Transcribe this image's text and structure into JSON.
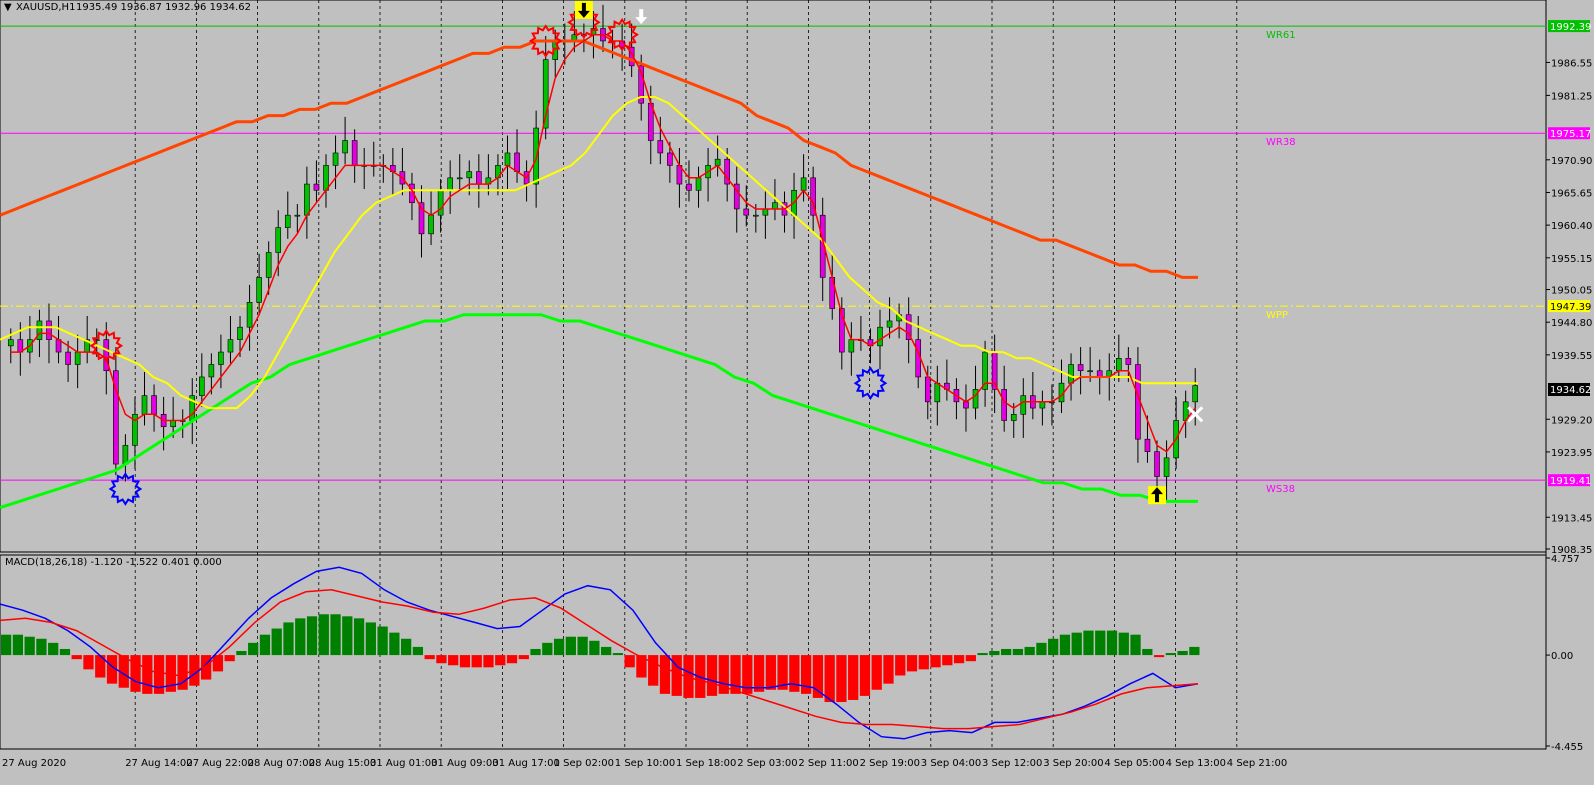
{
  "header": {
    "title": "XAUUSD,H1",
    "ohlc": "1935.49 1936.87 1932.96 1934.62"
  },
  "macd_header": "MACD(18,26,18) -1.120 -1.522 0.401 0.000",
  "colors": {
    "background": "#c0c0c0",
    "bull": "#00c000",
    "bear": "#e000e0",
    "ma_red": "#ff0000",
    "ma_yellow": "#ffff00",
    "ma_orange": "#ff4500",
    "ma_green": "#00ff00",
    "macd_line": "#0000ff",
    "signal_line": "#ff0000",
    "hist_pos": "#008000",
    "hist_neg": "#ff0000"
  },
  "chart_data": [
    {
      "type": "candlestick",
      "symbol": "XAUUSD",
      "timeframe": "H1",
      "ylim": [
        1908.35,
        1996.1
      ],
      "price_ticks": [
        "1986.55",
        "1981.25",
        "1970.90",
        "1965.65",
        "1960.40",
        "1955.15",
        "1950.05",
        "1944.80",
        "1939.55",
        "1929.20",
        "1923.95",
        "1913.45",
        "1908.35"
      ],
      "time_ticks": [
        "27 Aug 2020",
        "27 Aug 14:00",
        "27 Aug 22:00",
        "28 Aug 07:00",
        "28 Aug 15:00",
        "31 Aug 01:00",
        "31 Aug 09:00",
        "31 Aug 17:00",
        "1 Sep 02:00",
        "1 Sep 10:00",
        "1 Sep 18:00",
        "2 Sep 03:00",
        "2 Sep 11:00",
        "2 Sep 19:00",
        "3 Sep 04:00",
        "3 Sep 12:00",
        "3 Sep 20:00",
        "4 Sep 05:00",
        "4 Sep 13:00",
        "4 Sep 21:00"
      ],
      "levels": [
        {
          "name": "WR61",
          "value": 1992.39,
          "label": "1992.39",
          "color": "#00c000",
          "style": "solid"
        },
        {
          "name": "WR38",
          "value": 1975.17,
          "label": "1975.17",
          "color": "#ff00ff",
          "style": "solid"
        },
        {
          "name": "WPP",
          "value": 1947.39,
          "label": "1947.39",
          "color": "#ffff00",
          "style": "dashdot"
        },
        {
          "name": "WS38",
          "value": 1919.41,
          "label": "1919.41",
          "color": "#ff00ff",
          "style": "solid"
        }
      ],
      "current_price": "1934.62",
      "closes": [
        1942,
        1940,
        1942,
        1945,
        1942,
        1940,
        1938,
        1940,
        1942,
        1942,
        1937,
        1922,
        1925,
        1930,
        1933,
        1930,
        1928,
        1929,
        1929,
        1933,
        1936,
        1938,
        1940,
        1942,
        1944,
        1948,
        1952,
        1956,
        1960,
        1962,
        1962,
        1967,
        1966,
        1970,
        1972,
        1974,
        1970,
        1970,
        1970,
        1970,
        1969,
        1967,
        1964,
        1959,
        1962,
        1966,
        1968,
        1968,
        1969,
        1967,
        1968,
        1970,
        1972,
        1969,
        1967,
        1976,
        1987,
        1990,
        1990,
        1991,
        1991,
        1992,
        1990,
        1990,
        1989,
        1986,
        1980,
        1974,
        1972,
        1970,
        1967,
        1966,
        1968,
        1970,
        1971,
        1967,
        1963,
        1962,
        1962,
        1963,
        1964,
        1962,
        1966,
        1968,
        1962,
        1952,
        1947,
        1940,
        1942,
        1942,
        1941,
        1944,
        1945,
        1946,
        1942,
        1936,
        1932,
        1935,
        1934,
        1932,
        1931,
        1934,
        1940,
        1934,
        1929,
        1930,
        1933,
        1931,
        1932,
        1932,
        1935,
        1938,
        1937,
        1937,
        1936,
        1937,
        1939,
        1938,
        1926,
        1924,
        1920,
        1923,
        1929,
        1932,
        1934.62
      ],
      "ma_fast_red": [
        1940,
        1940,
        1941,
        1943,
        1943,
        1942,
        1941,
        1940,
        1940,
        1940,
        1939,
        1934,
        1930,
        1929,
        1930,
        1930,
        1929,
        1929,
        1929,
        1930,
        1932,
        1934,
        1936,
        1938,
        1940,
        1943,
        1946,
        1950,
        1954,
        1957,
        1959,
        1962,
        1964,
        1966,
        1968,
        1970,
        1970,
        1970,
        1970,
        1970,
        1969,
        1968,
        1966,
        1963,
        1962,
        1963,
        1965,
        1966,
        1967,
        1967,
        1967,
        1968,
        1970,
        1969,
        1968,
        1971,
        1978,
        1984,
        1987,
        1989,
        1990,
        1991,
        1991,
        1990,
        1990,
        1988,
        1985,
        1980,
        1976,
        1973,
        1970,
        1968,
        1968,
        1969,
        1970,
        1968,
        1966,
        1964,
        1963,
        1963,
        1963,
        1963,
        1964,
        1966,
        1964,
        1958,
        1952,
        1946,
        1942,
        1942,
        1941,
        1942,
        1943,
        1944,
        1943,
        1940,
        1936,
        1935,
        1934,
        1933,
        1932,
        1933,
        1935,
        1935,
        1932,
        1931,
        1932,
        1932,
        1932,
        1932,
        1933,
        1935,
        1936,
        1936,
        1936,
        1936,
        1937,
        1937,
        1933,
        1929,
        1925,
        1924,
        1926,
        1929,
        1931
      ],
      "ma_yellow": [
        1942,
        1943,
        1944,
        1944,
        1944,
        1943,
        1942,
        1941,
        1940,
        1939,
        1938,
        1936,
        1935,
        1933,
        1932,
        1931,
        1931,
        1931,
        1933,
        1936,
        1940,
        1944,
        1948,
        1952,
        1956,
        1959,
        1962,
        1964,
        1965,
        1966,
        1966,
        1966,
        1966,
        1966,
        1966,
        1966,
        1966,
        1966,
        1967,
        1968,
        1969,
        1970,
        1972,
        1975,
        1978,
        1980,
        1981,
        1981,
        1980,
        1978,
        1976,
        1974,
        1972,
        1970,
        1968,
        1966,
        1964,
        1962,
        1960,
        1958,
        1955,
        1952,
        1950,
        1948,
        1947,
        1945,
        1944,
        1943,
        1942,
        1941,
        1941,
        1940,
        1940,
        1939,
        1939,
        1938,
        1937,
        1936,
        1936,
        1936,
        1936,
        1936,
        1935,
        1935,
        1935,
        1935,
        1935
      ],
      "ma_orange": [
        1962,
        1963,
        1964,
        1965,
        1966,
        1967,
        1968,
        1969,
        1970,
        1971,
        1972,
        1973,
        1974,
        1975,
        1976,
        1977,
        1977,
        1978,
        1978,
        1979,
        1979,
        1980,
        1980,
        1981,
        1982,
        1983,
        1984,
        1985,
        1986,
        1987,
        1988,
        1988,
        1989,
        1989,
        1990,
        1990,
        1990,
        1990,
        1989,
        1988,
        1987,
        1986,
        1985,
        1984,
        1983,
        1982,
        1981,
        1980,
        1978,
        1977,
        1976,
        1974,
        1973,
        1972,
        1970,
        1969,
        1968,
        1967,
        1966,
        1965,
        1964,
        1963,
        1962,
        1961,
        1960,
        1959,
        1958,
        1958,
        1957,
        1956,
        1955,
        1954,
        1954,
        1953,
        1953,
        1952,
        1952
      ],
      "ma_green": [
        1915,
        1916,
        1917,
        1918,
        1919,
        1920,
        1921,
        1923,
        1925,
        1927,
        1929,
        1931,
        1933,
        1935,
        1936,
        1938,
        1939,
        1940,
        1941,
        1942,
        1943,
        1944,
        1945,
        1945,
        1946,
        1946,
        1946,
        1946,
        1946,
        1945,
        1945,
        1944,
        1943,
        1942,
        1941,
        1940,
        1939,
        1938,
        1936,
        1935,
        1933,
        1932,
        1931,
        1930,
        1929,
        1928,
        1927,
        1926,
        1925,
        1924,
        1923,
        1922,
        1921,
        1920,
        1919,
        1919,
        1918,
        1918,
        1917,
        1917,
        1916,
        1916,
        1916
      ],
      "markers": [
        {
          "kind": "sun",
          "candle": 56,
          "value": 1990,
          "color": "#ff0000"
        },
        {
          "kind": "sun",
          "candle": 60,
          "value": 1993,
          "color": "#ff0000"
        },
        {
          "kind": "sun",
          "candle": 64,
          "value": 1991,
          "color": "#ff0000"
        },
        {
          "kind": "sun",
          "candle": 10,
          "value": 1941,
          "color": "#ff0000"
        },
        {
          "kind": "sun",
          "candle": 12,
          "value": 1918,
          "color": "#0000ff"
        },
        {
          "kind": "sun",
          "candle": 90,
          "value": 1935,
          "color": "#0000ff"
        },
        {
          "kind": "arrow-down",
          "candle": 60,
          "value": 1995,
          "color": "#000000",
          "bg": "#ffff00"
        },
        {
          "kind": "arrow-down",
          "candle": 66,
          "value": 1994,
          "color": "#ffffff",
          "bg": ""
        },
        {
          "kind": "arrow-up",
          "candle": 120,
          "value": 1917,
          "color": "#000000",
          "bg": "#ffff00"
        },
        {
          "kind": "cross",
          "candle": 124,
          "value": 1930,
          "color": "#ffffff",
          "bg": ""
        }
      ]
    },
    {
      "type": "macd",
      "params": "18,26,18",
      "ylim": [
        -4.455,
        4.757
      ],
      "ticks": [
        "4.757",
        "0.00",
        "-4.455"
      ],
      "histogram": [
        1.0,
        1.0,
        0.9,
        0.8,
        0.6,
        0.3,
        -0.2,
        -0.7,
        -1.1,
        -1.4,
        -1.6,
        -1.8,
        -1.9,
        -1.9,
        -1.8,
        -1.7,
        -1.5,
        -1.2,
        -0.8,
        -0.3,
        0.2,
        0.6,
        1.0,
        1.3,
        1.6,
        1.8,
        1.9,
        2.0,
        2.0,
        1.9,
        1.8,
        1.6,
        1.4,
        1.1,
        0.8,
        0.4,
        -0.2,
        -0.4,
        -0.5,
        -0.6,
        -0.6,
        -0.6,
        -0.5,
        -0.4,
        -0.2,
        0.3,
        0.6,
        0.8,
        0.9,
        0.9,
        0.7,
        0.4,
        0.1,
        -0.6,
        -1.1,
        -1.5,
        -1.9,
        -2.0,
        -2.1,
        -2.1,
        -2.0,
        -1.9,
        -1.9,
        -1.9,
        -1.8,
        -1.7,
        -1.7,
        -1.8,
        -1.9,
        -2.1,
        -2.3,
        -2.3,
        -2.2,
        -2.0,
        -1.7,
        -1.4,
        -1.0,
        -0.8,
        -0.7,
        -0.6,
        -0.5,
        -0.4,
        -0.3,
        0.1,
        0.2,
        0.3,
        0.3,
        0.4,
        0.6,
        0.8,
        1.0,
        1.1,
        1.2,
        1.2,
        1.2,
        1.1,
        1.0,
        0.3,
        -0.1,
        0.1,
        0.2,
        0.4
      ],
      "macd_line": [
        2.5,
        2.2,
        1.8,
        1.2,
        0.4,
        -0.6,
        -1.3,
        -1.6,
        -1.4,
        -0.6,
        0.6,
        1.8,
        2.8,
        3.5,
        4.1,
        4.3,
        4.0,
        3.2,
        2.6,
        2.2,
        1.9,
        1.6,
        1.3,
        1.4,
        2.2,
        3.0,
        3.4,
        3.2,
        2.2,
        0.6,
        -0.6,
        -1.1,
        -1.4,
        -1.6,
        -1.6,
        -1.4,
        -1.6,
        -2.4,
        -3.3,
        -4.0,
        -4.1,
        -3.8,
        -3.7,
        -3.8,
        -3.3,
        -3.3,
        -3.1,
        -2.9,
        -2.5,
        -2.0,
        -1.4,
        -0.9,
        -1.6,
        -1.4
      ],
      "signal_line": [
        1.7,
        1.8,
        1.6,
        1.2,
        0.5,
        -0.2,
        -0.8,
        -1.0,
        -0.6,
        0.4,
        1.6,
        2.6,
        3.1,
        3.2,
        2.9,
        2.6,
        2.4,
        2.1,
        2.0,
        2.3,
        2.7,
        2.8,
        2.3,
        1.5,
        0.7,
        0.0,
        -0.6,
        -1.1,
        -1.4,
        -1.8,
        -2.2,
        -2.6,
        -3.0,
        -3.3,
        -3.4,
        -3.4,
        -3.5,
        -3.6,
        -3.6,
        -3.5,
        -3.4,
        -3.1,
        -2.8,
        -2.4,
        -1.9,
        -1.6,
        -1.5,
        -1.4
      ]
    }
  ]
}
